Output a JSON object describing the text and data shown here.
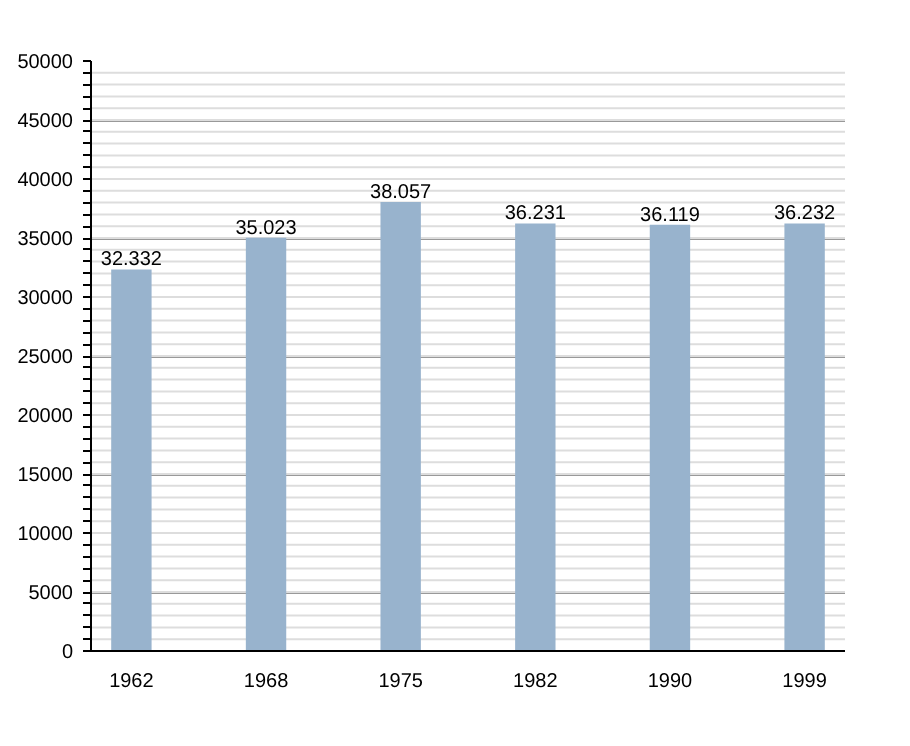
{
  "chart_data": {
    "type": "bar",
    "categories": [
      "1962",
      "1968",
      "1975",
      "1982",
      "1990",
      "1999"
    ],
    "values": [
      32332,
      35023,
      38057,
      36231,
      36119,
      36232
    ],
    "value_labels": [
      "32.332",
      "35.023",
      "38.057",
      "36.231",
      "36.119",
      "36.232"
    ],
    "color": "#98b3cd",
    "ylim": [
      0,
      50000
    ],
    "yticks": [
      0,
      5000,
      10000,
      15000,
      20000,
      25000,
      30000,
      35000,
      40000,
      45000,
      50000
    ],
    "grid": "y"
  }
}
